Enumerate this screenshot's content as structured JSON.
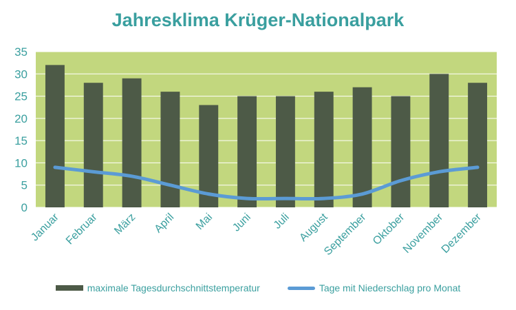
{
  "colors": {
    "plot_background": "#c2d77e",
    "bar": "#4d5a47",
    "line": "#5b9bd5",
    "text": "#3a9f9f",
    "grid": "#ffffff"
  },
  "chart_data": {
    "type": "bar",
    "title": "Jahresklima Krüger-Nationalpark",
    "categories": [
      "Januar",
      "Februar",
      "März",
      "April",
      "Mai",
      "Juni",
      "Juli",
      "August",
      "September",
      "Oktober",
      "November",
      "Dezember"
    ],
    "series": [
      {
        "name": "maximale Tagesdurchschnittstemperatur",
        "type": "bar",
        "values": [
          32,
          28,
          29,
          26,
          23,
          25,
          25,
          26,
          27,
          25,
          30,
          28
        ]
      },
      {
        "name": "Tage mit Niederschlag pro Monat",
        "type": "line",
        "values": [
          9,
          8,
          7,
          5,
          3,
          2,
          2,
          2,
          3,
          6,
          8,
          9
        ]
      }
    ],
    "yticks": [
      0,
      5,
      10,
      15,
      20,
      25,
      30,
      35
    ],
    "ylim": [
      0,
      35
    ],
    "grid": true,
    "legend": "bottom"
  }
}
